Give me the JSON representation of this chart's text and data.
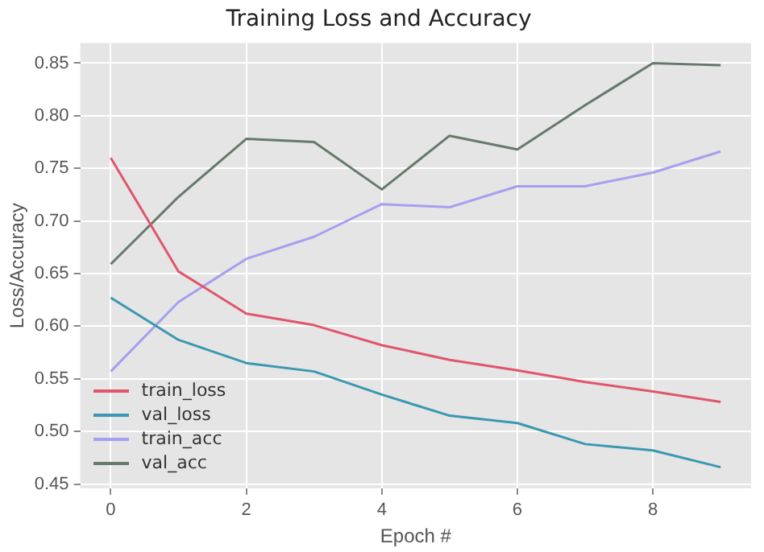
{
  "chart_data": {
    "type": "line",
    "title": "Training Loss and Accuracy",
    "xlabel": "Epoch #",
    "ylabel": "Loss/Accuracy",
    "x": [
      0,
      1,
      2,
      3,
      4,
      5,
      6,
      7,
      8,
      9
    ],
    "series": [
      {
        "name": "train_loss",
        "color": "#e0566c",
        "values": [
          0.76,
          0.652,
          0.612,
          0.601,
          0.582,
          0.568,
          0.558,
          0.547,
          0.538,
          0.528
        ]
      },
      {
        "name": "val_loss",
        "color": "#3a98b0",
        "values": [
          0.627,
          0.587,
          0.565,
          0.557,
          0.535,
          0.515,
          0.508,
          0.488,
          0.482,
          0.466
        ]
      },
      {
        "name": "train_acc",
        "color": "#a69ff0",
        "values": [
          0.557,
          0.623,
          0.664,
          0.685,
          0.716,
          0.713,
          0.733,
          0.733,
          0.746,
          0.766
        ]
      },
      {
        "name": "val_acc",
        "color": "#667a6c",
        "values": [
          0.659,
          0.723,
          0.778,
          0.775,
          0.73,
          0.781,
          0.768,
          0.81,
          0.85,
          0.848
        ]
      }
    ],
    "xlim": [
      -0.45,
      9.45
    ],
    "xticks": [
      0,
      2,
      4,
      6,
      8
    ],
    "ylim": [
      0.446,
      0.869
    ],
    "yticks": [
      {
        "value": 0.45,
        "label": "0.45"
      },
      {
        "value": 0.5,
        "label": "0.50"
      },
      {
        "value": 0.55,
        "label": "0.55"
      },
      {
        "value": 0.6,
        "label": "0.60"
      },
      {
        "value": 0.65,
        "label": "0.65"
      },
      {
        "value": 0.7,
        "label": "0.70"
      },
      {
        "value": 0.75,
        "label": "0.75"
      },
      {
        "value": 0.8,
        "label": "0.80"
      },
      {
        "value": 0.85,
        "label": "0.85"
      }
    ],
    "grid": true,
    "legend": "bottom left",
    "marker": "none",
    "line_style": "solid"
  }
}
